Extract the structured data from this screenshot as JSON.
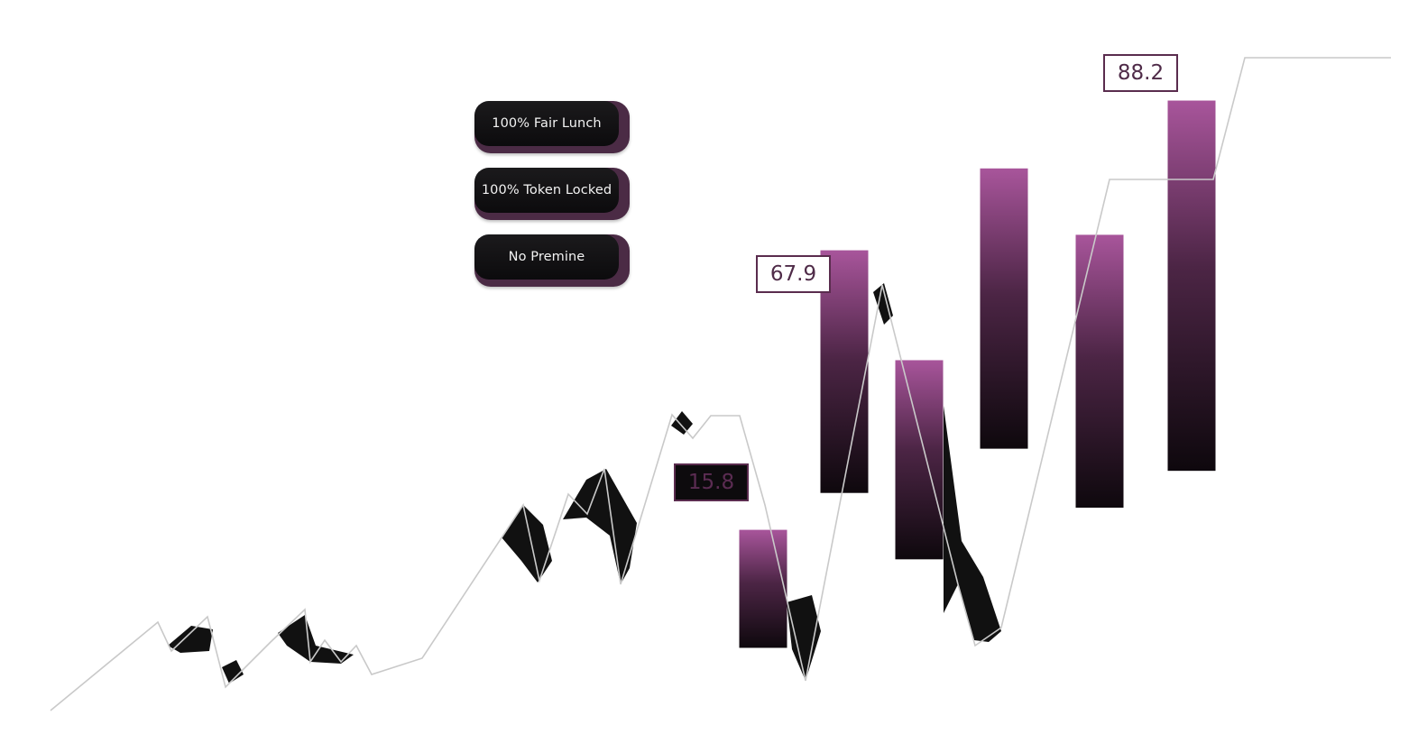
{
  "badges": [
    {
      "label": "100% Fair Lunch"
    },
    {
      "label": "100% Token Locked"
    },
    {
      "label": "No Premine"
    }
  ],
  "colors": {
    "bar_top": "#a8559b",
    "bar_bottom": "#0e080d",
    "line": "#c9c9c9",
    "label_border": "#5a2c4e",
    "label_text": "#4f2b48",
    "pill_shadow": "#4b2b45"
  },
  "chart_data": {
    "type": "bar",
    "title": "",
    "xlabel": "",
    "ylabel": "",
    "bars": [
      {
        "top": 30.0,
        "bottom": 14.0
      },
      {
        "top": 67.9,
        "bottom": 35.0
      },
      {
        "top": 53.0,
        "bottom": 26.0
      },
      {
        "top": 79.0,
        "bottom": 41.0
      },
      {
        "top": 70.0,
        "bottom": 33.0
      },
      {
        "top": 88.2,
        "bottom": 38.0
      }
    ],
    "annotations": [
      {
        "text": "67.9",
        "bar_index": 1
      },
      {
        "text": "88.2",
        "bar_index": 5
      },
      {
        "text": "15.8"
      }
    ],
    "ylim": [
      0,
      100
    ]
  }
}
